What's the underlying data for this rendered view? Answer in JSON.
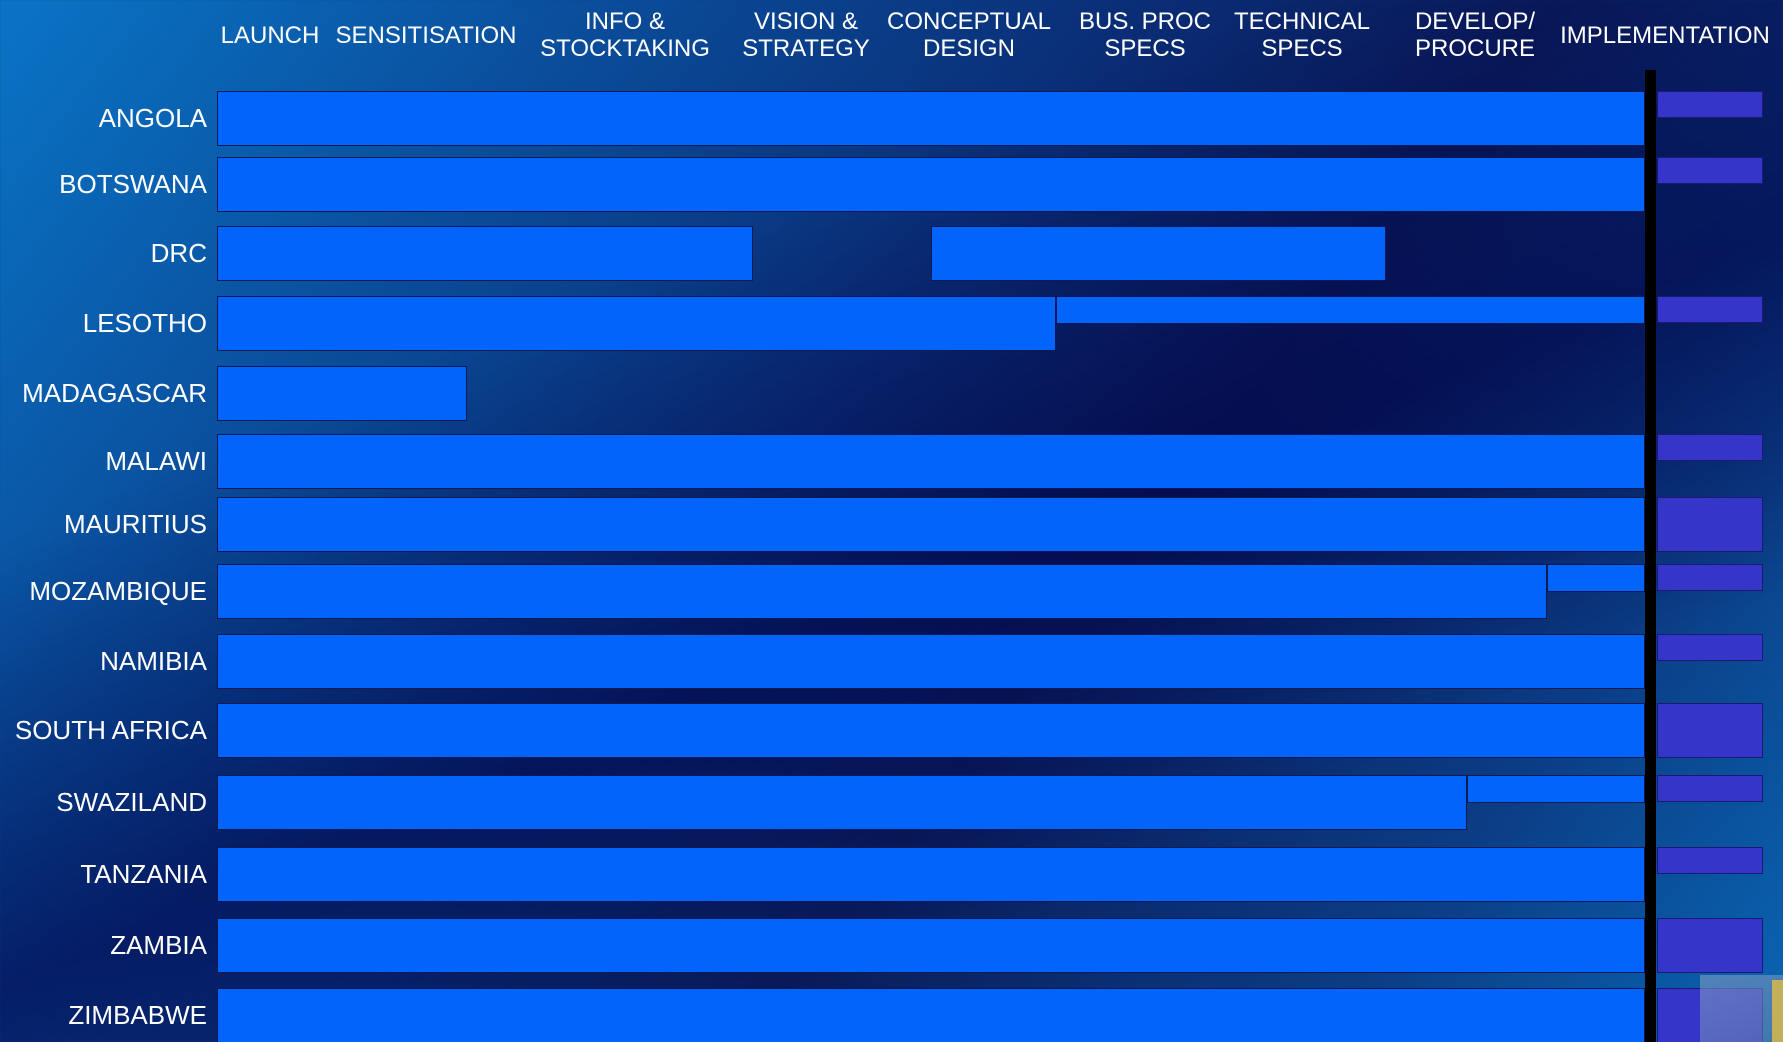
{
  "chart_data": {
    "type": "gantt",
    "phases": [
      "LAUNCH",
      "SENSITISATION",
      "INFO &\nSTOCKTAKING",
      "VISION &\nSTRATEGY",
      "CONCEPTUAL\nDESIGN",
      "BUS. PROC\nSPECS",
      "TECHNICAL\nSPECS",
      "DEVELOP/\nPROCURE",
      "IMPLEMENTATION"
    ],
    "current_position": 8,
    "rows": [
      {
        "country": "ANGOLA",
        "segments": [
          {
            "start": 0,
            "end": 8,
            "kind": "full"
          }
        ],
        "implementation": "thin"
      },
      {
        "country": "BOTSWANA",
        "segments": [
          {
            "start": 0,
            "end": 8,
            "kind": "full"
          }
        ],
        "implementation": "thin"
      },
      {
        "country": "DRC",
        "segments": [
          {
            "start": 0,
            "end": 3.0,
            "kind": "full"
          },
          {
            "start": 4.0,
            "end": 6.55,
            "kind": "full"
          }
        ],
        "implementation": "none"
      },
      {
        "country": "LESOTHO",
        "segments": [
          {
            "start": 0,
            "end": 4.7,
            "kind": "full"
          },
          {
            "start": 4.7,
            "end": 8,
            "kind": "partial"
          }
        ],
        "implementation": "thin"
      },
      {
        "country": "MADAGASCAR",
        "segments": [
          {
            "start": 0,
            "end": 1.4,
            "kind": "full"
          }
        ],
        "implementation": "none"
      },
      {
        "country": "MALAWI",
        "segments": [
          {
            "start": 0,
            "end": 8,
            "kind": "full"
          }
        ],
        "implementation": "thin"
      },
      {
        "country": "MAURITIUS",
        "segments": [
          {
            "start": 0,
            "end": 8,
            "kind": "full"
          }
        ],
        "implementation": "full"
      },
      {
        "country": "MOZAMBIQUE",
        "segments": [
          {
            "start": 0,
            "end": 7.45,
            "kind": "full"
          },
          {
            "start": 7.45,
            "end": 8,
            "kind": "partial"
          }
        ],
        "implementation": "thin"
      },
      {
        "country": "NAMIBIA",
        "segments": [
          {
            "start": 0,
            "end": 8,
            "kind": "full"
          }
        ],
        "implementation": "thin"
      },
      {
        "country": "SOUTH AFRICA",
        "segments": [
          {
            "start": 0,
            "end": 8,
            "kind": "full"
          }
        ],
        "implementation": "full"
      },
      {
        "country": "SWAZILAND",
        "segments": [
          {
            "start": 0,
            "end": 7.0,
            "kind": "full"
          },
          {
            "start": 7.0,
            "end": 8,
            "kind": "partial"
          }
        ],
        "implementation": "thin"
      },
      {
        "country": "TANZANIA",
        "segments": [
          {
            "start": 0,
            "end": 8,
            "kind": "full"
          }
        ],
        "implementation": "thin"
      },
      {
        "country": "ZAMBIA",
        "segments": [
          {
            "start": 0,
            "end": 8,
            "kind": "full"
          }
        ],
        "implementation": "full"
      },
      {
        "country": "ZIMBABWE",
        "segments": [
          {
            "start": 0,
            "end": 8,
            "kind": "full"
          }
        ],
        "implementation": "full"
      }
    ],
    "colors": {
      "progress_bar": "#0364fb",
      "implementation_bar": "#3535c9",
      "current_marker": "#000000"
    }
  }
}
